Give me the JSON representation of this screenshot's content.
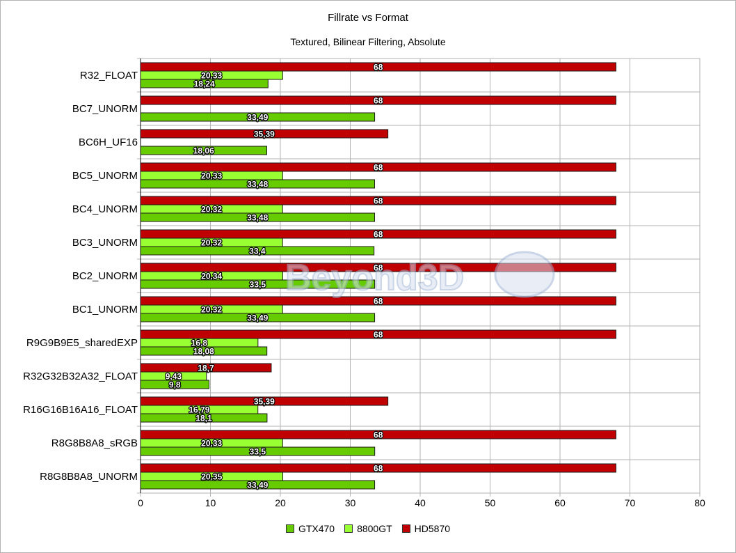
{
  "chart_data": {
    "type": "bar",
    "orientation": "horizontal",
    "title": "Fillrate vs Format",
    "subtitle": "Textured, Bilinear Filtering, Absolute",
    "categories": [
      "R32_FLOAT",
      "BC7_UNORM",
      "BC6H_UF16",
      "BC5_UNORM",
      "BC4_UNORM",
      "BC3_UNORM",
      "BC2_UNORM",
      "BC1_UNORM",
      "R9G9B9E5_sharedEXP",
      "R32G32B32A32_FLOAT",
      "R16G16B16A16_FLOAT",
      "R8G8B8A8_sRGB",
      "R8G8B8A8_UNORM"
    ],
    "series": [
      {
        "name": "HD5870",
        "color": "#c00000",
        "values": [
          68,
          68,
          35.39,
          68,
          68,
          68,
          68,
          68,
          68,
          18.7,
          35.39,
          68,
          68
        ],
        "labels": [
          "68",
          "68",
          "35,39",
          "68",
          "68",
          "68",
          "68",
          "68",
          "68",
          "18,7",
          "35,39",
          "68",
          "68"
        ]
      },
      {
        "name": "8800GT",
        "color": "#99ff33",
        "values": [
          20.33,
          null,
          null,
          20.33,
          20.32,
          20.32,
          20.34,
          20.32,
          16.8,
          9.43,
          16.79,
          20.33,
          20.35
        ],
        "labels": [
          "20,33",
          "",
          "",
          "20,33",
          "20,32",
          "20,32",
          "20,34",
          "20,32",
          "16,8",
          "9,43",
          "16,79",
          "20,33",
          "20,35"
        ]
      },
      {
        "name": "GTX470",
        "color": "#66cc00",
        "values": [
          18.24,
          33.49,
          18.06,
          33.48,
          33.48,
          33.4,
          33.5,
          33.49,
          18.08,
          9.8,
          18.1,
          33.5,
          33.49
        ],
        "labels": [
          "18,24",
          "33,49",
          "18,06",
          "33,48",
          "33,48",
          "33,4",
          "33,5",
          "33,49",
          "18,08",
          "9,8",
          "18,1",
          "33,5",
          "33,49"
        ]
      }
    ],
    "legend": [
      "GTX470",
      "8800GT",
      "HD5870"
    ],
    "legend_colors": [
      "#66cc00",
      "#99ff33",
      "#c00000"
    ],
    "xlim": [
      0,
      80
    ],
    "xticks": [
      "0",
      "10",
      "20",
      "30",
      "40",
      "50",
      "60",
      "70",
      "80"
    ],
    "grid": true,
    "legend_position": "bottom",
    "watermark": "Beyond3D"
  }
}
